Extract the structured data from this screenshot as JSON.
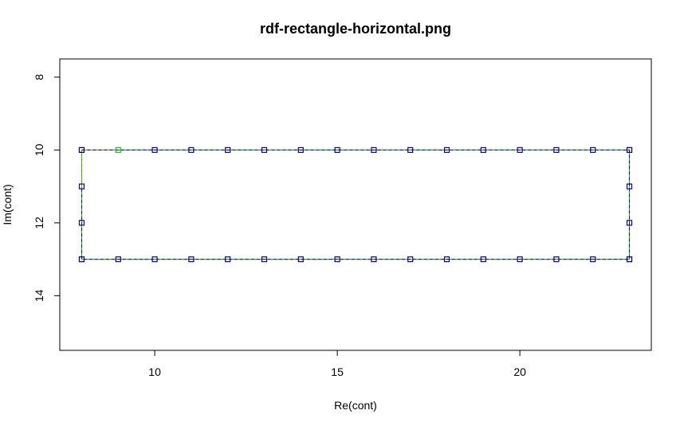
{
  "chart_data": {
    "type": "line",
    "title": "rdf-rectangle-horizontal.png",
    "xlabel": "Re(cont)",
    "ylabel": "Im(cont)",
    "xlim": [
      7.4,
      23.6
    ],
    "ylim": [
      15.5,
      7.5
    ],
    "y_reversed": true,
    "x_ticks": [
      10,
      15,
      20
    ],
    "y_ticks": [
      8,
      10,
      12,
      14
    ],
    "grid": false,
    "colors": {
      "outline": "#9a9a00",
      "series_green": "#22bb22",
      "series_blue": "#0000ff",
      "markers_dark": "#1a006e"
    },
    "series": [
      {
        "style": "solid olive outline",
        "points": [
          [
            8,
            10
          ],
          [
            8,
            13
          ],
          [
            23,
            13
          ],
          [
            23,
            10
          ],
          [
            8,
            10
          ]
        ]
      },
      {
        "style": "dashed green polyline with square markers",
        "points": [
          [
            9,
            10
          ],
          [
            23,
            10
          ],
          [
            23,
            13
          ],
          [
            8,
            13
          ],
          [
            8,
            10
          ]
        ]
      },
      {
        "style": "dashed blue polyline with square markers",
        "points": [
          [
            8,
            10
          ],
          [
            10,
            10
          ],
          [
            11,
            10
          ],
          [
            12,
            10
          ],
          [
            13,
            10
          ],
          [
            14,
            10
          ],
          [
            15,
            10
          ],
          [
            16,
            10
          ],
          [
            17,
            10
          ],
          [
            18,
            10
          ],
          [
            19,
            10
          ],
          [
            20,
            10
          ],
          [
            21,
            10
          ],
          [
            22,
            10
          ],
          [
            23,
            10
          ],
          [
            23,
            11
          ],
          [
            23,
            12
          ],
          [
            23,
            13
          ],
          [
            22,
            13
          ],
          [
            21,
            13
          ],
          [
            20,
            13
          ],
          [
            19,
            13
          ],
          [
            18,
            13
          ],
          [
            17,
            13
          ],
          [
            16,
            13
          ],
          [
            15,
            13
          ],
          [
            14,
            13
          ],
          [
            13,
            13
          ],
          [
            12,
            13
          ],
          [
            11,
            13
          ],
          [
            10,
            13
          ],
          [
            9,
            13
          ],
          [
            8,
            13
          ],
          [
            8,
            12
          ],
          [
            8,
            11
          ]
        ]
      }
    ]
  }
}
